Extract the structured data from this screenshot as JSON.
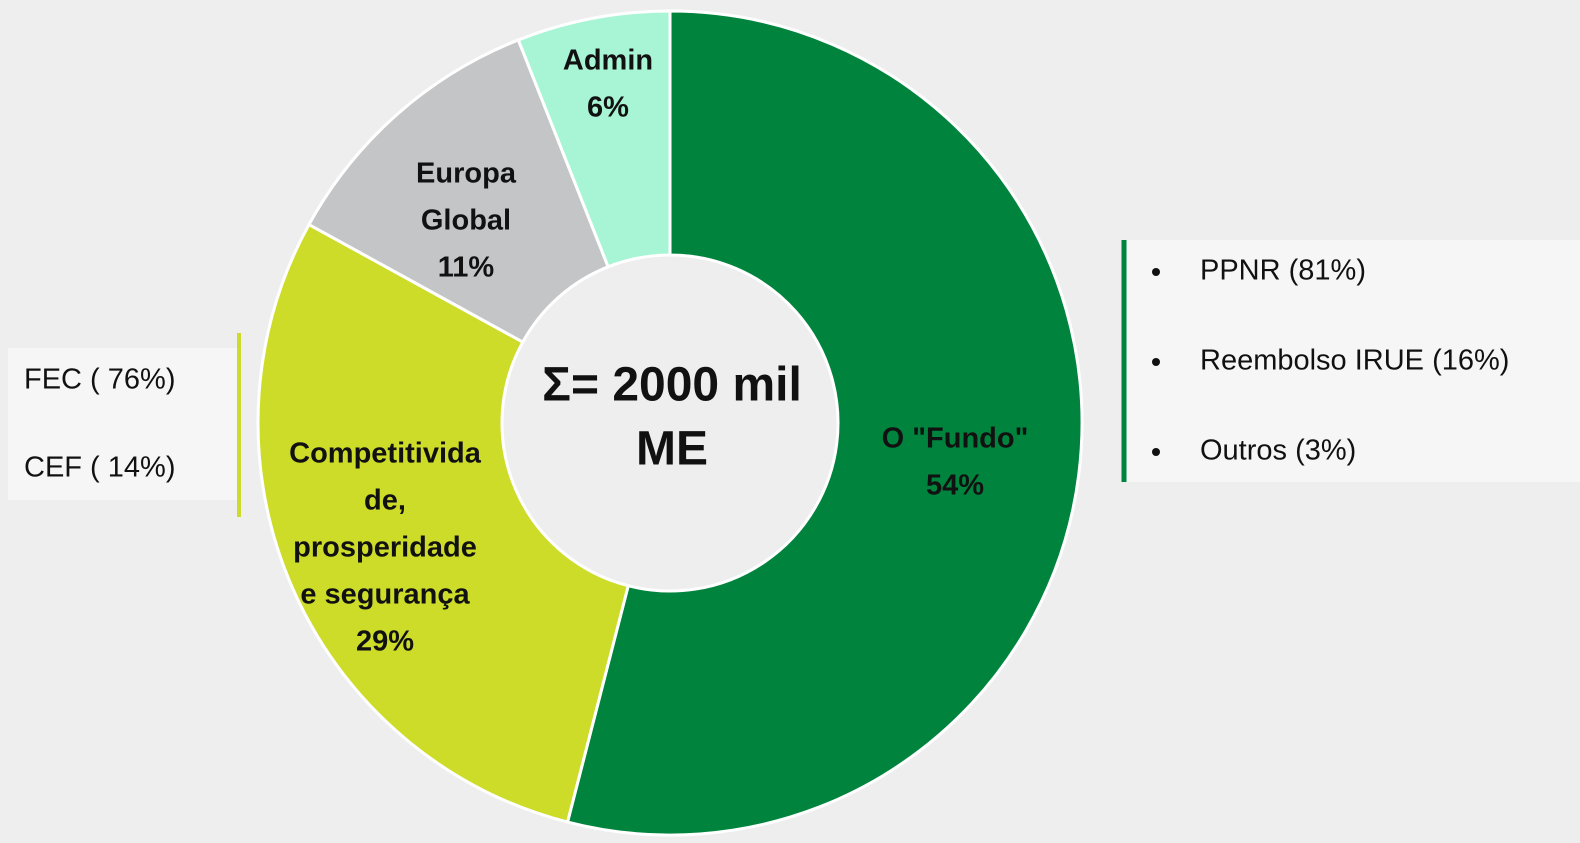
{
  "chart_data": {
    "type": "donut",
    "categories": [
      [
        "O \"Fundo\""
      ],
      [
        "Competitivida",
        "de,",
        "prosperidade",
        "e segurança"
      ],
      [
        "Europa",
        "Global"
      ],
      [
        "Admin"
      ]
    ],
    "values": [
      54,
      29,
      11,
      6
    ],
    "value_labels": [
      "54%",
      "29%",
      "11%",
      "6%"
    ],
    "colors": [
      "#00843d",
      "#cddc29",
      "#c4c5c7",
      "#a8f5d5"
    ],
    "center_text": [
      "Σ= 2000 mil",
      "ME"
    ],
    "notes": {
      "left": [
        "FEC  ( 76%)",
        "CEF ( 14%)"
      ],
      "right": [
        "PPNR (81%)",
        "Reembolso IRUE (16%)",
        "Outros (3%)"
      ]
    }
  }
}
